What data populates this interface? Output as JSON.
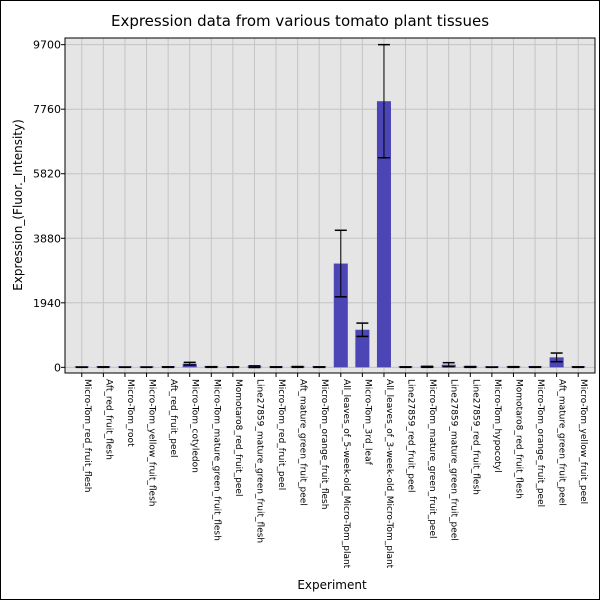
{
  "chart_data": {
    "type": "bar",
    "title": "Expression data from various tomato plant tissues",
    "xlabel": "Experiment",
    "ylabel": "Expression_(Fluor._Intensity)",
    "ylim": [
      -170,
      9900
    ],
    "yticks": [
      0,
      1940,
      3880,
      5820,
      7760,
      9700
    ],
    "grid": true,
    "bar_color": "#4b45b5",
    "plot_background": "#e5e5e5",
    "categories": [
      "Micro-Tom_red_fruit_flesh",
      "Aft_red_fruit_flesh",
      "Micro-Tom_root",
      "Micro-Tom_yellow_fruit_flesh",
      "Aft_red_fruit_peel",
      "Micro-Tom_cotyledon",
      "Micro-Tom_mature_green_fruit_flesh",
      "Momotaro8_red_fruit_peel",
      "Line27859_mature_green_fruit_flesh",
      "Micro-Tom_red_fruit_peel",
      "Aft_mature_green_fruit_peel",
      "Micro-Tom_orange_fruit_flesh",
      "All_leaves_of_5-week-old_Micro-Tom_plant",
      "Micro-Tom_3rd_leaf",
      "All_leaves_of_3-week-old_Micro-Tom_plant",
      "Line27859_red_fruit_peel",
      "Micro-Tom_mature_green_fruit_peel",
      "Line27859_mature_green_fruit_peel",
      "Line27859_red_fruit_flesh",
      "Micro-Tom_hypocotyl",
      "Momotaro8_red_fruit_flesh",
      "Micro-Tom_orange_fruit_peel",
      "Aft_mature_green_fruit_peel",
      "Micro-Tom_yellow_fruit_peel"
    ],
    "values": [
      5,
      8,
      5,
      5,
      8,
      110,
      10,
      8,
      20,
      8,
      12,
      8,
      3120,
      1130,
      8000,
      8,
      15,
      80,
      12,
      5,
      10,
      8,
      300,
      8
    ],
    "errors": [
      5,
      8,
      5,
      5,
      8,
      40,
      10,
      8,
      25,
      8,
      12,
      8,
      1000,
      200,
      1700,
      8,
      15,
      60,
      12,
      5,
      10,
      8,
      130,
      8
    ]
  }
}
